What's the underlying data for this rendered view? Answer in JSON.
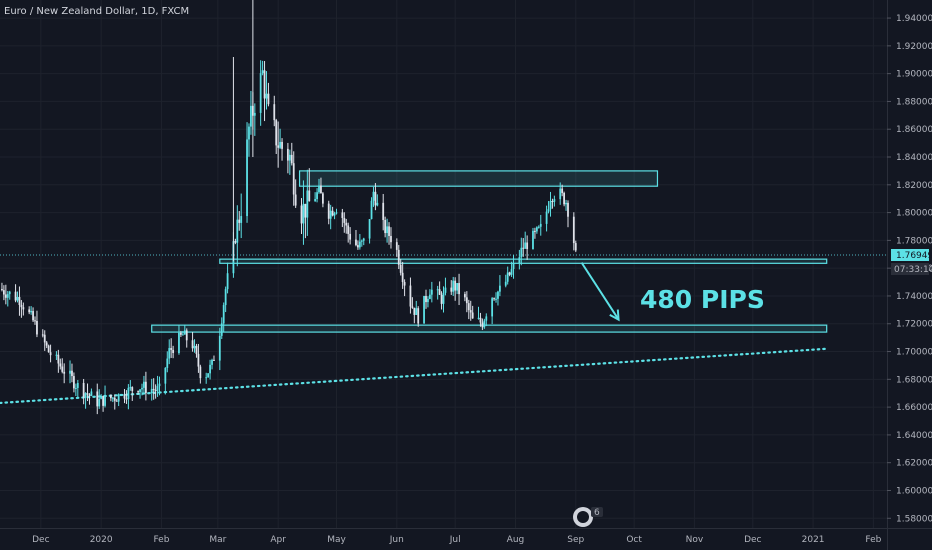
{
  "header": {
    "title": "Euro / New Zealand Dollar, 1D, FXCM"
  },
  "price_tag": {
    "last": "1.76949",
    "countdown": "07:33:10"
  },
  "annotation": {
    "text": "480 PIPS"
  },
  "badge": {
    "count": "6"
  },
  "colors": {
    "background": "#131722",
    "up": "#5ce1e6",
    "down": "#e0e3eb",
    "zone": "#5ce1e6",
    "axis_text": "#b2b5be",
    "price_line": "#4fb3c0"
  },
  "chart_data": {
    "type": "candlestick",
    "title": "Euro / New Zealand Dollar, 1D, FXCM",
    "y_axis": {
      "position": "right",
      "ylim": [
        1.573,
        1.953
      ],
      "ticks": [
        "1.94000",
        "1.92000",
        "1.90000",
        "1.88000",
        "1.86000",
        "1.84000",
        "1.82000",
        "1.80000",
        "1.78000",
        "1.76000",
        "1.74000",
        "1.72000",
        "1.70000",
        "1.68000",
        "1.66000",
        "1.64000",
        "1.62000",
        "1.60000",
        "1.58000"
      ]
    },
    "x_axis": {
      "range": [
        "2019-11-10",
        "2021-02-08"
      ],
      "ticks": [
        {
          "date": "2019-12-01",
          "label": "Dec"
        },
        {
          "date": "2020-01-01",
          "label": "2020"
        },
        {
          "date": "2020-02-01",
          "label": "Feb"
        },
        {
          "date": "2020-03-01",
          "label": "Mar"
        },
        {
          "date": "2020-04-01",
          "label": "Apr"
        },
        {
          "date": "2020-05-01",
          "label": "May"
        },
        {
          "date": "2020-06-01",
          "label": "Jun"
        },
        {
          "date": "2020-07-01",
          "label": "Jul"
        },
        {
          "date": "2020-08-01",
          "label": "Aug"
        },
        {
          "date": "2020-09-01",
          "label": "Sep"
        },
        {
          "date": "2020-10-01",
          "label": "Oct"
        },
        {
          "date": "2020-11-01",
          "label": "Nov"
        },
        {
          "date": "2020-12-01",
          "label": "Dec"
        },
        {
          "date": "2021-01-01",
          "label": "2021"
        },
        {
          "date": "2021-02-01",
          "label": "Feb"
        }
      ]
    },
    "price_path": [
      [
        "2019-11-10",
        1.745
      ],
      [
        "2019-11-20",
        1.738
      ],
      [
        "2019-11-27",
        1.722
      ],
      [
        "2019-12-05",
        1.7
      ],
      [
        "2019-12-12",
        1.688
      ],
      [
        "2019-12-20",
        1.675
      ],
      [
        "2019-12-30",
        1.664
      ],
      [
        "2020-01-10",
        1.668
      ],
      [
        "2020-01-20",
        1.675
      ],
      [
        "2020-01-31",
        1.672
      ],
      [
        "2020-02-05",
        1.7
      ],
      [
        "2020-02-12",
        1.712
      ],
      [
        "2020-02-17",
        1.705
      ],
      [
        "2020-02-22",
        1.68
      ],
      [
        "2020-02-27",
        1.69
      ],
      [
        "2020-03-02",
        1.715
      ],
      [
        "2020-03-05",
        1.745
      ],
      [
        "2020-03-09",
        1.775
      ],
      [
        "2020-03-13",
        1.805
      ],
      [
        "2020-03-17",
        1.86
      ],
      [
        "2020-03-20",
        1.88
      ],
      [
        "2020-03-24",
        1.9
      ],
      [
        "2020-03-27",
        1.87
      ],
      [
        "2020-04-01",
        1.85
      ],
      [
        "2020-04-07",
        1.84
      ],
      [
        "2020-04-12",
        1.8
      ],
      [
        "2020-04-16",
        1.805
      ],
      [
        "2020-04-22",
        1.815
      ],
      [
        "2020-04-27",
        1.8
      ],
      [
        "2020-05-02",
        1.805
      ],
      [
        "2020-05-07",
        1.785
      ],
      [
        "2020-05-12",
        1.775
      ],
      [
        "2020-05-16",
        1.78
      ],
      [
        "2020-05-20",
        1.815
      ],
      [
        "2020-05-25",
        1.79
      ],
      [
        "2020-05-31",
        1.778
      ],
      [
        "2020-06-04",
        1.755
      ],
      [
        "2020-06-08",
        1.735
      ],
      [
        "2020-06-12",
        1.725
      ],
      [
        "2020-06-18",
        1.745
      ],
      [
        "2020-06-24",
        1.738
      ],
      [
        "2020-06-30",
        1.748
      ],
      [
        "2020-07-05",
        1.74
      ],
      [
        "2020-07-10",
        1.722
      ],
      [
        "2020-07-15",
        1.721
      ],
      [
        "2020-07-20",
        1.74
      ],
      [
        "2020-07-25",
        1.745
      ],
      [
        "2020-07-30",
        1.758
      ],
      [
        "2020-08-05",
        1.775
      ],
      [
        "2020-08-10",
        1.782
      ],
      [
        "2020-08-15",
        1.79
      ],
      [
        "2020-08-19",
        1.812
      ],
      [
        "2020-08-23",
        1.815
      ],
      [
        "2020-08-27",
        1.808
      ],
      [
        "2020-08-30",
        1.79
      ],
      [
        "2020-09-01",
        1.769
      ]
    ],
    "zones": [
      {
        "from": "2020-04-12",
        "to": "2020-10-13",
        "top": 1.83,
        "bottom": 1.819
      },
      {
        "from": "2020-03-02",
        "to": "2021-01-08",
        "top": 1.7665,
        "bottom": 1.7635
      },
      {
        "from": "2020-01-27",
        "to": "2021-01-08",
        "top": 1.719,
        "bottom": 1.714
      }
    ],
    "trendline": {
      "style": "dotted",
      "from": [
        "2019-11-10",
        1.663
      ],
      "to": [
        "2021-01-08",
        1.702
      ]
    },
    "arrow": {
      "from": [
        "2020-09-04",
        1.764
      ],
      "to": [
        "2020-09-23",
        1.723
      ]
    },
    "last_price": 1.76949,
    "grid": true
  }
}
